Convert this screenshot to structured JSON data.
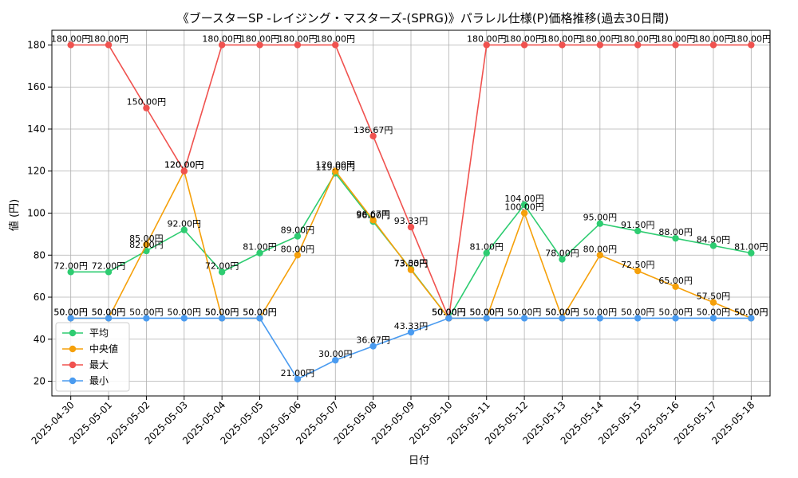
{
  "chart_data": {
    "type": "line",
    "title": "《ブースターSP -レイジング・マスターズ-(SPRG)》パラレル仕様(P)価格推移(過去30日間)",
    "xlabel": "日付",
    "ylabel": "値 (円)",
    "value_suffix": "円",
    "ylim": [
      13,
      187
    ],
    "yticks": [
      20,
      40,
      60,
      80,
      100,
      120,
      140,
      160,
      180
    ],
    "grid": true,
    "legend_position": "bottom-left",
    "categories": [
      "2025-04-30",
      "2025-05-01",
      "2025-05-02",
      "2025-05-03",
      "2025-05-04",
      "2025-05-05",
      "2025-05-06",
      "2025-05-07",
      "2025-05-08",
      "2025-05-09",
      "2025-05-10",
      "2025-05-11",
      "2025-05-12",
      "2025-05-13",
      "2025-05-14",
      "2025-05-15",
      "2025-05-16",
      "2025-05-17",
      "2025-05-18"
    ],
    "series": [
      {
        "name": "平均",
        "color": "#2ecc71",
        "values": [
          72.0,
          72.0,
          82.0,
          92.0,
          72.0,
          81.0,
          89.0,
          119.0,
          96.0,
          73.33,
          50.0,
          81.0,
          104.0,
          78.0,
          95.0,
          91.5,
          88.0,
          84.5,
          81.0
        ]
      },
      {
        "name": "中央値",
        "color": "#f5a00a",
        "values": [
          50.0,
          50.0,
          85.0,
          120.0,
          50.0,
          50.0,
          80.0,
          120.0,
          96.67,
          73.0,
          50.0,
          50.0,
          100.0,
          50.0,
          80.0,
          72.5,
          65.0,
          57.5,
          50.0
        ]
      },
      {
        "name": "最大",
        "color": "#f0524f",
        "values": [
          180.0,
          180.0,
          150.0,
          120.0,
          180.0,
          180.0,
          180.0,
          180.0,
          136.67,
          93.33,
          50.0,
          180.0,
          180.0,
          180.0,
          180.0,
          180.0,
          180.0,
          180.0,
          180.0
        ]
      },
      {
        "name": "最小",
        "color": "#4a9bf0",
        "values": [
          50.0,
          50.0,
          50.0,
          50.0,
          50.0,
          50.0,
          21.0,
          30.0,
          36.67,
          43.33,
          50.0,
          50.0,
          50.0,
          50.0,
          50.0,
          50.0,
          50.0,
          50.0,
          50.0
        ]
      }
    ]
  }
}
